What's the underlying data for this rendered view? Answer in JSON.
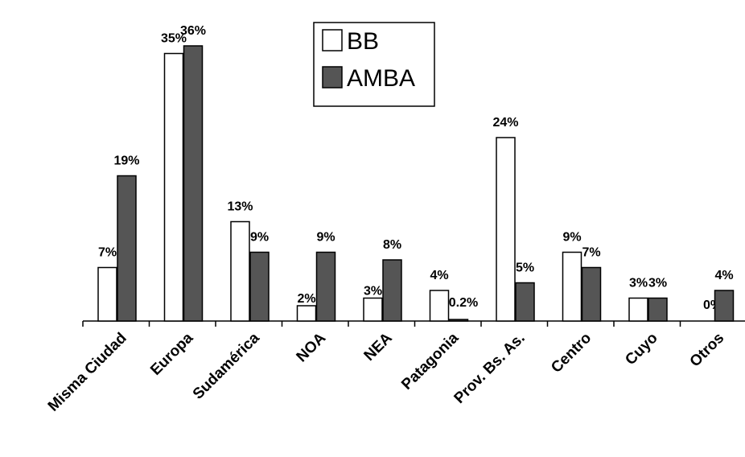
{
  "chart_data": {
    "type": "bar",
    "title": "",
    "xlabel": "",
    "ylabel": "",
    "ylim": [
      0,
      36
    ],
    "grid": false,
    "legend_position": "top-center",
    "categories": [
      "Misma Ciudad",
      "Europa",
      "Sudamérica",
      "NOA",
      "NEA",
      "Patagonia",
      "Prov. Bs. As.",
      "Centro",
      "Cuyo",
      "Otros"
    ],
    "series": [
      {
        "name": "BB",
        "color": "#ffffff",
        "values": [
          7,
          35,
          13,
          2,
          3,
          4,
          24,
          9,
          3,
          0
        ],
        "labels": [
          "7%",
          "35%",
          "13%",
          "2%",
          "3%",
          "4%",
          "24%",
          "9%",
          "3%",
          "0%"
        ]
      },
      {
        "name": "AMBA",
        "color": "#555555",
        "values": [
          19,
          36,
          9,
          9,
          8,
          0.2,
          5,
          7,
          3,
          4
        ],
        "labels": [
          "19%",
          "36%",
          "9%",
          "9%",
          "8%",
          "0.2%",
          "5%",
          "7%",
          "3%",
          "4%"
        ]
      }
    ]
  }
}
